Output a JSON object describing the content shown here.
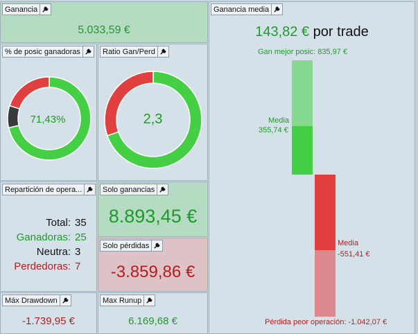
{
  "panels": {
    "ganancia": {
      "title": "Ganancia",
      "value": "5.033,59 €"
    },
    "pct_ganadoras": {
      "title": "% de posic ganadoras",
      "value": "71,43%",
      "win_fraction": 0.7143,
      "neutral_fraction": 0.0857,
      "loss_fraction": 0.2,
      "colors": {
        "win": "#44cf44",
        "neutral": "#3a3a3a",
        "loss": "#e04040"
      }
    },
    "ratio": {
      "title": "Ratio Gan/Perd",
      "value": "2,3",
      "win_fraction": 0.6972,
      "colors": {
        "win": "#44cf44",
        "loss": "#e04040"
      }
    },
    "reparticion": {
      "title": "Repartición de opera...",
      "rows": [
        {
          "label": "Total:",
          "value": "35",
          "tone": "k"
        },
        {
          "label": "Ganadoras:",
          "value": "25",
          "tone": "g"
        },
        {
          "label": "Neutra:",
          "value": "3",
          "tone": "k"
        },
        {
          "label": "Perdedoras:",
          "value": "7",
          "tone": "r"
        }
      ]
    },
    "solo_ganancias": {
      "title": "Solo ganancias",
      "value": "8.893,45 €"
    },
    "solo_perdidas": {
      "title": "Solo pérdidas",
      "value": "-3.859,86 €"
    },
    "max_drawdown": {
      "title": "Máx Drawdown",
      "value": "-1.739,95 €"
    },
    "max_runup": {
      "title": "Max Runup",
      "value": "6.169,68 €"
    },
    "ganancia_media": {
      "title": "Ganancia media",
      "value": "143,82 €",
      "suffix": "por trade",
      "best_label": "Gan mejor posic: 835,97 €",
      "win_media_label": "Media",
      "win_media_value": "355,74 €",
      "loss_media_label": "Media",
      "loss_media_value": "-551,41 €",
      "worst_label": "Pérdida peor operación: -1.042,07 €",
      "bars": {
        "win_max": 835.97,
        "win_avg": 355.74,
        "loss_max": 1042.07,
        "loss_avg": 551.41
      },
      "colors": {
        "win_light": "#86d98e",
        "win": "#44cf44",
        "loss": "#e04040",
        "loss_light": "#dc8a8f"
      }
    }
  }
}
